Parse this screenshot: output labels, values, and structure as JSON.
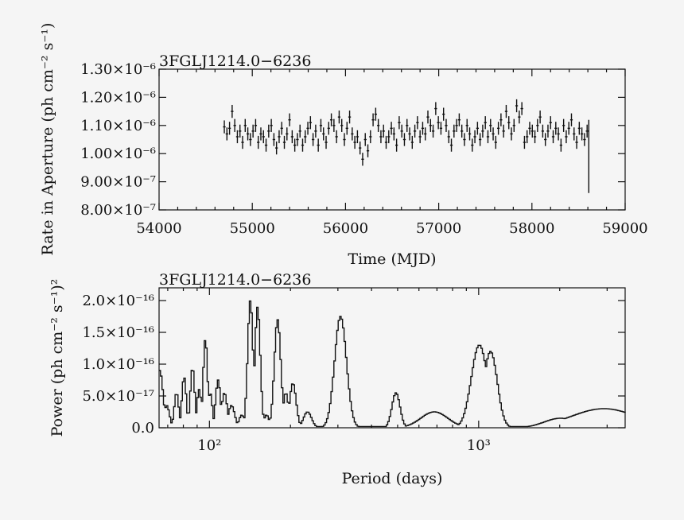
{
  "background": "#f5f5f5",
  "ink": "#111111",
  "chart_data": [
    {
      "type": "scatter",
      "title": "3FGLJ1214.0−6236",
      "xlabel": "Time (MJD)",
      "ylabel": "Rate in Aperture (ph cm⁻² s⁻¹)",
      "xlim": [
        54000,
        59000
      ],
      "ylim": [
        8e-07,
        1.3e-06
      ],
      "x_ticks": [
        54000,
        55000,
        56000,
        57000,
        58000,
        59000
      ],
      "x_tick_labels": [
        "54000",
        "55000",
        "56000",
        "57000",
        "58000",
        "59000"
      ],
      "y_ticks": [
        8e-07,
        9e-07,
        1e-06,
        1.1e-06,
        1.2e-06,
        1.3e-06
      ],
      "y_tick_labels": [
        "8.00×10⁻⁷",
        "9.00×10⁻⁷",
        "1.00×10⁻⁶",
        "1.10×10⁻⁶",
        "1.20×10⁻⁶",
        "1.30×10⁻⁶"
      ],
      "x_step": 28,
      "x": [
        54700,
        54728,
        54756,
        54784,
        54812,
        54840,
        54868,
        54896,
        54924,
        54952,
        54980,
        55008,
        55036,
        55064,
        55092,
        55120,
        55148,
        55176,
        55204,
        55232,
        55260,
        55288,
        55316,
        55344,
        55372,
        55400,
        55428,
        55456,
        55484,
        55512,
        55540,
        55568,
        55596,
        55624,
        55652,
        55680,
        55708,
        55736,
        55764,
        55792,
        55820,
        55848,
        55876,
        55904,
        55932,
        55960,
        55988,
        56016,
        56044,
        56072,
        56100,
        56128,
        56156,
        56184,
        56212,
        56240,
        56268,
        56296,
        56324,
        56352,
        56380,
        56408,
        56436,
        56464,
        56492,
        56520,
        56548,
        56576,
        56604,
        56632,
        56660,
        56688,
        56716,
        56744,
        56772,
        56800,
        56828,
        56856,
        56884,
        56912,
        56940,
        56968,
        56996,
        57024,
        57052,
        57080,
        57108,
        57136,
        57164,
        57192,
        57220,
        57248,
        57276,
        57304,
        57332,
        57360,
        57388,
        57416,
        57444,
        57472,
        57500,
        57528,
        57556,
        57584,
        57612,
        57640,
        57668,
        57696,
        57724,
        57752,
        57780,
        57808,
        57836,
        57864,
        57892,
        57920,
        57948,
        57976,
        58004,
        58032,
        58060,
        58088,
        58116,
        58144,
        58172,
        58200,
        58228,
        58256,
        58284,
        58312,
        58340,
        58368,
        58396,
        58424,
        58452,
        58480,
        58508,
        58536,
        58564,
        58592
      ],
      "y": [
        1.095e-06,
        1.07e-06,
        1.09e-06,
        1.15e-06,
        1.1e-06,
        1.06e-06,
        1.08e-06,
        1.04e-06,
        1.1e-06,
        1.07e-06,
        1.05e-06,
        1.08e-06,
        1.1e-06,
        1.04e-06,
        1.07e-06,
        1.06e-06,
        1.03e-06,
        1.08e-06,
        1.1e-06,
        1.05e-06,
        1.02e-06,
        1.06e-06,
        1.09e-06,
        1.04e-06,
        1.07e-06,
        1.12e-06,
        1.06e-06,
        1.03e-06,
        1.05e-06,
        1.08e-06,
        1.03e-06,
        1.06e-06,
        1.09e-06,
        1.11e-06,
        1.05e-06,
        1.08e-06,
        1.03e-06,
        1.1e-06,
        1.07e-06,
        1.04e-06,
        1.09e-06,
        1.12e-06,
        1.1e-06,
        1.06e-06,
        1.13e-06,
        1.1e-06,
        1.05e-06,
        1.09e-06,
        1.13e-06,
        1.07e-06,
        1.04e-06,
        1.06e-06,
        1.02e-06,
        9.8e-07,
        1.05e-06,
        1.01e-06,
        1.06e-06,
        1.12e-06,
        1.14e-06,
        1.1e-06,
        1.06e-06,
        1.08e-06,
        1.04e-06,
        1.06e-06,
        1.09e-06,
        1.07e-06,
        1.03e-06,
        1.11e-06,
        1.08e-06,
        1.05e-06,
        1.1e-06,
        1.07e-06,
        1.04e-06,
        1.08e-06,
        1.11e-06,
        1.06e-06,
        1.09e-06,
        1.07e-06,
        1.13e-06,
        1.1e-06,
        1.08e-06,
        1.16e-06,
        1.11e-06,
        1.09e-06,
        1.14e-06,
        1.1e-06,
        1.06e-06,
        1.03e-06,
        1.08e-06,
        1.1e-06,
        1.12e-06,
        1.08e-06,
        1.05e-06,
        1.1e-06,
        1.07e-06,
        1.03e-06,
        1.06e-06,
        1.09e-06,
        1.05e-06,
        1.08e-06,
        1.11e-06,
        1.06e-06,
        1.1e-06,
        1.07e-06,
        1.04e-06,
        1.09e-06,
        1.12e-06,
        1.08e-06,
        1.15e-06,
        1.11e-06,
        1.07e-06,
        1.1e-06,
        1.17e-06,
        1.13e-06,
        1.16e-06,
        1.04e-06,
        1.06e-06,
        1.09e-06,
        1.08e-06,
        1.06e-06,
        1.1e-06,
        1.13e-06,
        1.08e-06,
        1.05e-06,
        1.08e-06,
        1.11e-06,
        1.06e-06,
        1.09e-06,
        1.07e-06,
        1.03e-06,
        1.1e-06,
        1.06e-06,
        1.09e-06,
        1.12e-06,
        1.07e-06,
        1.04e-06,
        1.09e-06,
        1.07e-06,
        1.05e-06,
        1.08e-06
      ],
      "y_err": 2.3e-08,
      "final_point": {
        "x": 58610,
        "y_low": 8.6e-07,
        "y_high": 1.12e-06
      }
    },
    {
      "type": "line",
      "title": "3FGLJ1214.0−6236",
      "xlabel": "Period (days)",
      "ylabel": "Power (ph cm⁻² s⁻¹)²",
      "x_scale": "log",
      "xlim": [
        65,
        3500
      ],
      "ylim": [
        0,
        2.2e-16
      ],
      "x_ticks": [
        100,
        1000
      ],
      "x_tick_labels": [
        "10²",
        "10³"
      ],
      "y_ticks": [
        0,
        5e-17,
        1e-16,
        1.5e-16,
        2e-16
      ],
      "y_tick_labels": [
        "0.0",
        "5.0×10⁻¹⁷",
        "1.0×10⁻¹⁶",
        "1.5×10⁻¹⁶",
        "2.0×10⁻¹⁶"
      ],
      "peaks": [
        {
          "period": 65,
          "power": 9e-17,
          "width": 0.012
        },
        {
          "period": 69,
          "power": 3.5e-17,
          "width": 0.01
        },
        {
          "period": 75,
          "power": 5.5e-17,
          "width": 0.008
        },
        {
          "period": 80,
          "power": 8e-17,
          "width": 0.008
        },
        {
          "period": 86,
          "power": 9.5e-17,
          "width": 0.008
        },
        {
          "period": 91,
          "power": 6e-17,
          "width": 0.008
        },
        {
          "period": 96,
          "power": 1.4e-16,
          "width": 0.008
        },
        {
          "period": 100,
          "power": 5.5e-17,
          "width": 0.008
        },
        {
          "period": 107,
          "power": 7.5e-17,
          "width": 0.009
        },
        {
          "period": 113,
          "power": 5.5e-17,
          "width": 0.01
        },
        {
          "period": 120,
          "power": 3.5e-17,
          "width": 0.012
        },
        {
          "period": 131,
          "power": 2e-17,
          "width": 0.01
        },
        {
          "period": 141,
          "power": 2e-16,
          "width": 0.01
        },
        {
          "period": 150,
          "power": 1.9e-16,
          "width": 0.01
        },
        {
          "period": 162,
          "power": 2e-17,
          "width": 0.01
        },
        {
          "period": 178,
          "power": 1.7e-16,
          "width": 0.012
        },
        {
          "period": 191,
          "power": 5.5e-17,
          "width": 0.01
        },
        {
          "period": 203,
          "power": 7e-17,
          "width": 0.012
        },
        {
          "period": 230,
          "power": 2.5e-17,
          "width": 0.015
        },
        {
          "period": 305,
          "power": 1.75e-16,
          "width": 0.022
        },
        {
          "period": 490,
          "power": 5.5e-17,
          "width": 0.015
        },
        {
          "period": 680,
          "power": 2.5e-17,
          "width": 0.05
        },
        {
          "period": 1000,
          "power": 1.3e-16,
          "width": 0.03
        },
        {
          "period": 1100,
          "power": 1.2e-16,
          "width": 0.025
        },
        {
          "period": 2000,
          "power": 1.5e-17,
          "width": 0.06
        },
        {
          "period": 2900,
          "power": 3e-17,
          "width": 0.12
        }
      ]
    }
  ]
}
